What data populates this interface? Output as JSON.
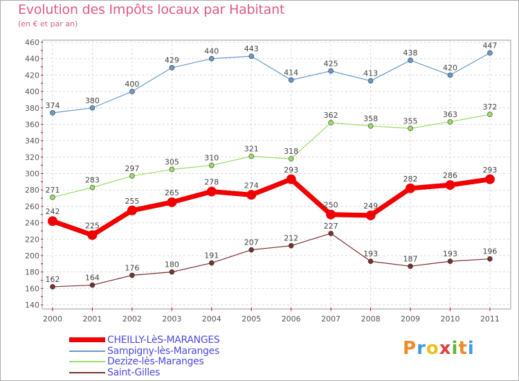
{
  "header": {
    "title": "Evolution des Impôts locaux par Habitant",
    "subtitle": "(en € et par an)"
  },
  "logo": {
    "text": "Proxiti",
    "letters": [
      "P",
      "r",
      "o",
      "x",
      "i",
      "t",
      "i"
    ],
    "colors": [
      "#f08a24",
      "#3c9de0",
      "#e8c020",
      "#e04040",
      "#5ab83c",
      "#f08a24",
      "#3c9de0"
    ]
  },
  "colors": {
    "title": "#e05a80",
    "legend_text": "#4b4bdc",
    "axis": "#555555",
    "grid": "#d8d8d8",
    "frame": "#999999",
    "tick_red": "#e00000"
  },
  "chart_data": {
    "type": "line",
    "title": "Evolution des Impôts locaux par Habitant",
    "subtitle": "(en € et par an)",
    "xlabel": "",
    "ylabel": "",
    "x": [
      "2000",
      "2001",
      "2002",
      "2003",
      "2004",
      "2005",
      "2006",
      "2007",
      "2008",
      "2009",
      "2010",
      "2011"
    ],
    "ylim": [
      140,
      460
    ],
    "yticks": [
      140,
      160,
      180,
      200,
      220,
      240,
      260,
      280,
      300,
      320,
      340,
      360,
      380,
      400,
      420,
      440,
      460
    ],
    "grid": "horizontal dashed",
    "legend_position": "bottom-left",
    "series": [
      {
        "name": "CHEILLY-LèS-MARANGES",
        "color": "#f00000",
        "width": 7,
        "marker": 7,
        "values": [
          242,
          225,
          255,
          265,
          278,
          274,
          293,
          250,
          249,
          282,
          286,
          293
        ]
      },
      {
        "name": "Sampigny-lès-Maranges",
        "color": "#6699cc",
        "width": 1.2,
        "marker": 3.5,
        "values": [
          374,
          380,
          400,
          429,
          440,
          443,
          414,
          425,
          413,
          438,
          420,
          447
        ]
      },
      {
        "name": "Dezize-lès-Maranges",
        "color": "#99dd66",
        "width": 1.2,
        "marker": 3.5,
        "values": [
          271,
          283,
          297,
          305,
          310,
          321,
          318,
          362,
          358,
          355,
          363,
          372
        ]
      },
      {
        "name": "Saint-Gilles",
        "color": "#7a3030",
        "width": 1.2,
        "marker": 3.5,
        "values": [
          162,
          164,
          176,
          180,
          191,
          207,
          212,
          227,
          193,
          187,
          193,
          196
        ]
      }
    ]
  }
}
